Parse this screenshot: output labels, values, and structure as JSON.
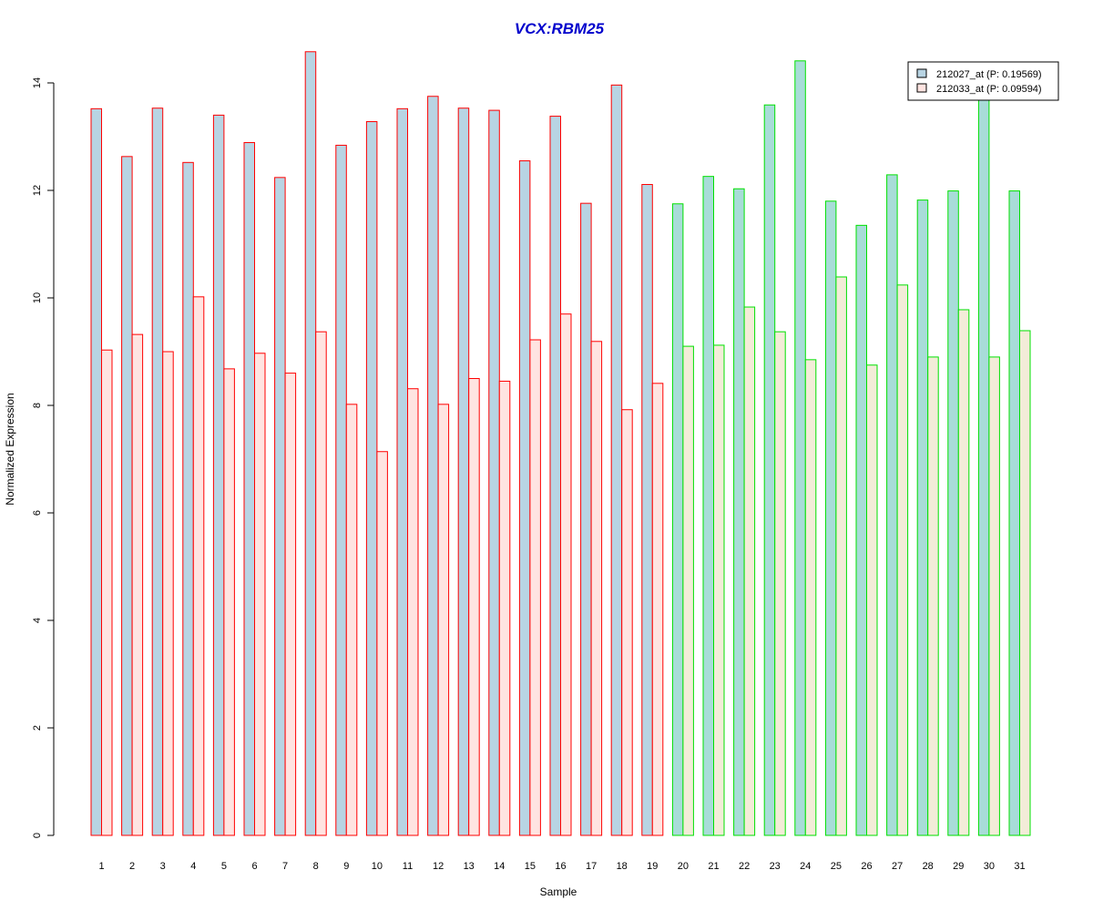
{
  "chart_data": {
    "type": "bar",
    "title": "VCX:RBM25",
    "xlabel": "Sample",
    "ylabel": "Normalized Expression",
    "ylim": [
      0,
      14.5
    ],
    "yticks": [
      "0",
      "2",
      "4",
      "6",
      "8",
      "10",
      "12",
      "14"
    ],
    "categories": [
      "1",
      "2",
      "3",
      "4",
      "5",
      "6",
      "7",
      "8",
      "9",
      "10",
      "11",
      "12",
      "13",
      "14",
      "15",
      "16",
      "17",
      "18",
      "19",
      "20",
      "21",
      "22",
      "23",
      "24",
      "25",
      "26",
      "27",
      "28",
      "29",
      "30",
      "31"
    ],
    "group_sizes": [
      19,
      12
    ],
    "series": [
      {
        "name": "212027_at (P: 0.19569)",
        "values": [
          13.52,
          12.63,
          13.53,
          12.52,
          13.4,
          12.89,
          12.24,
          14.58,
          12.84,
          13.28,
          13.52,
          13.75,
          13.53,
          13.49,
          12.55,
          13.38,
          11.76,
          13.96,
          12.11,
          11.75,
          12.26,
          12.03,
          13.59,
          14.41,
          11.8,
          11.35,
          12.29,
          11.82,
          11.99,
          13.77,
          11.99
        ]
      },
      {
        "name": "212033_at (P: 0.09594)",
        "values": [
          9.03,
          9.32,
          9.0,
          10.02,
          8.68,
          8.97,
          8.6,
          9.37,
          8.02,
          7.14,
          8.31,
          8.02,
          8.5,
          8.45,
          9.22,
          9.7,
          9.19,
          7.92,
          8.41,
          9.1,
          9.12,
          9.83,
          9.37,
          8.85,
          10.39,
          8.75,
          10.24,
          8.9,
          9.78,
          8.9,
          9.39
        ]
      }
    ],
    "colors": {
      "series1_fill_group1": "#b8d4e3",
      "series2_fill_group1": "#ffe4e1",
      "series1_fill_group2": "#a8dcd8",
      "series2_fill_group2": "#f3ecd8",
      "border_group1": "#ff0000",
      "border_group2": "#00e000",
      "title": "#0000cc"
    },
    "legend_position": "top-right",
    "grid": false
  }
}
